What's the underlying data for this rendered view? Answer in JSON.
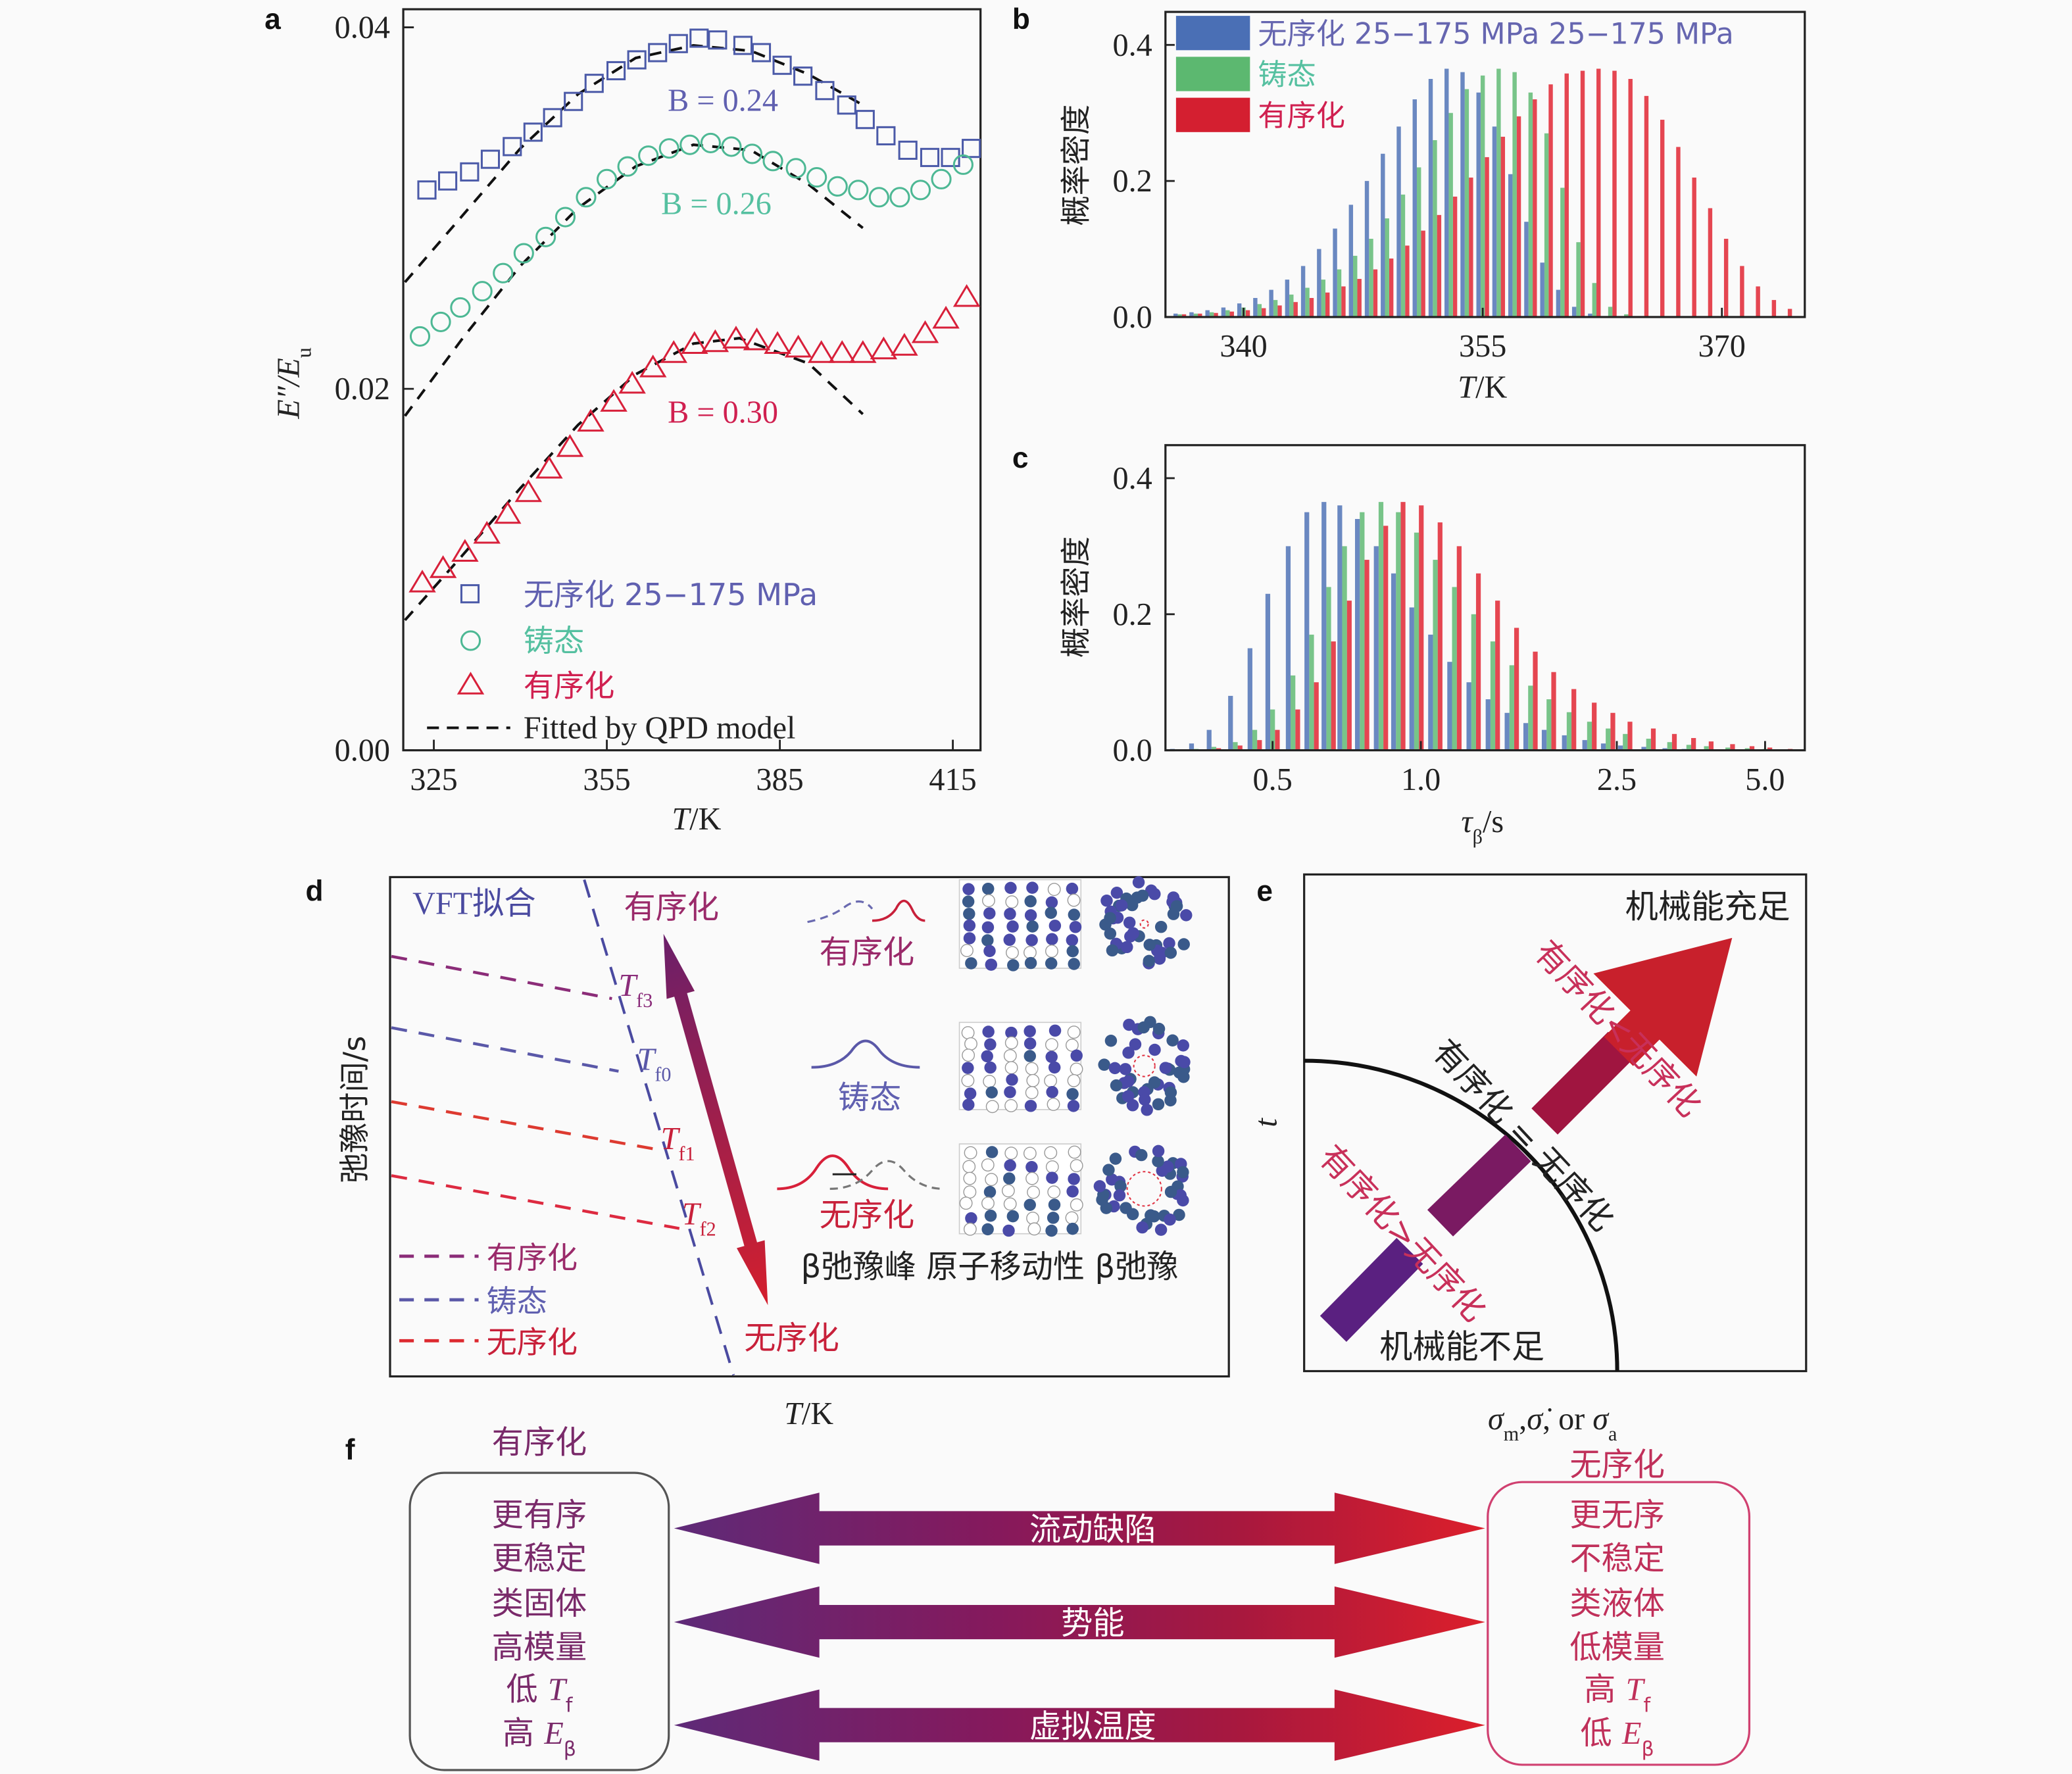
{
  "panel_labels": {
    "a": "a",
    "b": "b",
    "c": "c",
    "d": "d",
    "e": "e",
    "f": "f"
  },
  "colors": {
    "disordered_blue": "#4b5aa8",
    "as_cast_green": "#4db894",
    "ordered_red": "#d8203a",
    "hist_blue": "#4a6fb5",
    "hist_green": "#5cb870",
    "hist_red": "#e01e2c",
    "purple": "#7a2a6a",
    "magenta": "#c0305a"
  },
  "chart_data": [
    {
      "panel": "a",
      "type": "scatter",
      "xlabel": {
        "main": "T",
        "rest": "/K"
      },
      "ylabel": {
        "main": "E″/E",
        "sub": "u"
      },
      "xlim": [
        319.7,
        419.8
      ],
      "ylim": [
        0,
        0.041
      ],
      "xticks": [
        325,
        355,
        385,
        415
      ],
      "xtick_labels": [
        "325",
        "355",
        "385",
        "415"
      ],
      "yticks": [
        0,
        0.02,
        0.04
      ],
      "ytick_labels": [
        "0.00",
        "0.02",
        "0.04"
      ],
      "series": [
        {
          "name": "无序化 25−175 MPa",
          "marker": "square",
          "color": "#4b5aa8",
          "x": [
            323.8,
            327.4,
            331.2,
            334.8,
            338.6,
            342.2,
            345.6,
            349.2,
            352.8,
            356.6,
            360.2,
            363.8,
            367.4,
            371,
            374.2,
            378.6,
            381.8,
            385.4,
            389,
            392.8,
            396.6,
            399.8,
            403.4,
            407.2,
            411,
            414.6,
            418.2
          ],
          "y": [
            0.031,
            0.0315,
            0.032,
            0.0327,
            0.0334,
            0.0342,
            0.035,
            0.0359,
            0.0369,
            0.0376,
            0.0382,
            0.0386,
            0.0391,
            0.0394,
            0.0393,
            0.039,
            0.0386,
            0.0379,
            0.0373,
            0.0365,
            0.0357,
            0.0349,
            0.034,
            0.0332,
            0.0328,
            0.0328,
            0.0333
          ]
        },
        {
          "name": "铸态",
          "marker": "circle",
          "color": "#4db894",
          "x": [
            322.6,
            326.2,
            329.6,
            333.4,
            337,
            340.6,
            344.4,
            347.8,
            351.4,
            355,
            358.6,
            362.2,
            365.8,
            369.4,
            373,
            376.6,
            380.2,
            383.8,
            387.8,
            391.4,
            395,
            398.6,
            402.2,
            405.8,
            409.4,
            413,
            416.8
          ],
          "y": [
            0.0229,
            0.0237,
            0.0245,
            0.0254,
            0.0264,
            0.0275,
            0.0284,
            0.0295,
            0.0306,
            0.0316,
            0.0323,
            0.0329,
            0.0333,
            0.0335,
            0.0336,
            0.0334,
            0.033,
            0.0326,
            0.0322,
            0.0317,
            0.0312,
            0.031,
            0.0306,
            0.0306,
            0.031,
            0.0316,
            0.0324
          ]
        },
        {
          "name": "有序化",
          "marker": "triangle",
          "color": "#d8203a",
          "x": [
            323,
            326.6,
            330.4,
            334.2,
            337.8,
            341.4,
            345,
            348.6,
            352.2,
            356.2,
            359.4,
            363,
            366.6,
            370.2,
            373.8,
            377.4,
            381,
            384.6,
            388.2,
            392.2,
            395.8,
            399.4,
            403,
            406.6,
            410.2,
            413.8,
            417.4
          ],
          "y": [
            0.0093,
            0.0101,
            0.011,
            0.012,
            0.0131,
            0.0143,
            0.0156,
            0.0168,
            0.0182,
            0.0193,
            0.0203,
            0.0212,
            0.022,
            0.0225,
            0.0226,
            0.0228,
            0.0227,
            0.0225,
            0.0223,
            0.022,
            0.022,
            0.022,
            0.0222,
            0.0224,
            0.0231,
            0.0239,
            0.0251
          ]
        }
      ],
      "fits": [
        {
          "label": "B = 0.24",
          "color": "#6060b0",
          "x": [
            320,
            330,
            340,
            350,
            360,
            370,
            380,
            390,
            399.4
          ],
          "y": [
            0.0259,
            0.0296,
            0.0333,
            0.0363,
            0.0383,
            0.039,
            0.0387,
            0.0374,
            0.0357
          ]
        },
        {
          "label": "B = 0.26",
          "color": "#55c0a0",
          "x": [
            320,
            330,
            340,
            350,
            360,
            370,
            380,
            390,
            399.4
          ],
          "y": [
            0.0185,
            0.0228,
            0.0268,
            0.03,
            0.0323,
            0.0335,
            0.0332,
            0.0313,
            0.0289
          ]
        },
        {
          "label": "B = 0.30",
          "color": "#d02050",
          "x": [
            320,
            330,
            340,
            350,
            360,
            370,
            378,
            390,
            399.4
          ],
          "y": [
            0.0072,
            0.0108,
            0.0145,
            0.018,
            0.0208,
            0.0225,
            0.0228,
            0.0214,
            0.0186
          ]
        }
      ],
      "fit_legend": "Fitted by QPD model",
      "legend_position": "bottom-left"
    },
    {
      "panel": "b",
      "type": "bar",
      "xlabel": {
        "main": "T",
        "rest": "/K"
      },
      "ylabel": "概率密度",
      "xlim": [
        335.1,
        375.2
      ],
      "ylim": [
        0,
        0.45
      ],
      "xticks": [
        340,
        355,
        370
      ],
      "xtick_labels": [
        "340",
        "355",
        "370"
      ],
      "yticks": [
        0,
        0.2,
        0.4
      ],
      "ytick_labels": [
        "0.0",
        "0.2",
        "0.4"
      ],
      "x": [
        336,
        337,
        338,
        339,
        340,
        341,
        342,
        343,
        344,
        345,
        346,
        347,
        348,
        349,
        350,
        351,
        352,
        353,
        354,
        355,
        356,
        357,
        358,
        359,
        360,
        361,
        362,
        363,
        364,
        365,
        366,
        367,
        368,
        369,
        370,
        371,
        372,
        373,
        374,
        375
      ],
      "series": [
        {
          "name": "无序化 25−175 MPa 25−175 MPa",
          "color": "#4a6fb5",
          "text_color": "#6666b0",
          "values": [
            0.005,
            0.007,
            0.01,
            0.014,
            0.02,
            0.028,
            0.04,
            0.055,
            0.075,
            0.1,
            0.13,
            0.165,
            0.2,
            0.24,
            0.28,
            0.32,
            0.35,
            0.365,
            0.36,
            0.33,
            0.28,
            0.21,
            0.14,
            0.08,
            0.04,
            0.015,
            0.005,
            0.001,
            0,
            0,
            0,
            0,
            0,
            0,
            0,
            0,
            0,
            0,
            0,
            0
          ]
        },
        {
          "name": "铸态",
          "color": "#5cb870",
          "text_color": "#55c0a0",
          "values": [
            0.004,
            0.005,
            0.007,
            0.01,
            0.014,
            0.019,
            0.025,
            0.033,
            0.043,
            0.055,
            0.07,
            0.09,
            0.115,
            0.145,
            0.18,
            0.22,
            0.26,
            0.3,
            0.335,
            0.355,
            0.365,
            0.36,
            0.33,
            0.27,
            0.19,
            0.11,
            0.05,
            0.015,
            0.004,
            0.001,
            0,
            0,
            0,
            0,
            0,
            0,
            0,
            0,
            0,
            0
          ]
        },
        {
          "name": "有序化",
          "color": "#e01e2c",
          "text_color": "#d02050",
          "values": [
            0.004,
            0.005,
            0.006,
            0.008,
            0.01,
            0.013,
            0.017,
            0.022,
            0.028,
            0.036,
            0.045,
            0.056,
            0.07,
            0.086,
            0.105,
            0.127,
            0.15,
            0.177,
            0.205,
            0.235,
            0.265,
            0.295,
            0.32,
            0.342,
            0.358,
            0.362,
            0.365,
            0.362,
            0.35,
            0.325,
            0.29,
            0.25,
            0.205,
            0.16,
            0.115,
            0.075,
            0.045,
            0.025,
            0.012,
            0.005
          ]
        }
      ],
      "legend_position": "top-left"
    },
    {
      "panel": "c",
      "type": "bar",
      "xlabel": {
        "main": "τ",
        "sub": "β",
        "rest": "/s"
      },
      "ylabel": "概率密度",
      "xscale": "log",
      "xlim": [
        0.303,
        6.02
      ],
      "ylim": [
        0,
        0.45
      ],
      "xticks": [
        0.5,
        1.0,
        2.5,
        5.0
      ],
      "xtick_labels": [
        "0.5",
        "1.0",
        "2.5",
        "5.0"
      ],
      "yticks": [
        0,
        0.2,
        0.4
      ],
      "ytick_labels": [
        "0.0",
        "0.2",
        "0.4"
      ],
      "x": [
        0.32,
        0.35,
        0.38,
        0.42,
        0.46,
        0.5,
        0.55,
        0.6,
        0.65,
        0.7,
        0.76,
        0.83,
        0.9,
        0.98,
        1.07,
        1.17,
        1.28,
        1.4,
        1.53,
        1.67,
        1.82,
        2.0,
        2.2,
        2.4,
        2.6,
        2.9,
        3.2,
        3.5,
        3.8,
        4.2,
        4.6,
        5.0,
        5.5,
        6.0
      ],
      "series": [
        {
          "name": "无序化 25−175 MPa",
          "color": "#4a6fb5",
          "values": [
            0.002,
            0.01,
            0.03,
            0.08,
            0.15,
            0.23,
            0.3,
            0.35,
            0.365,
            0.36,
            0.34,
            0.3,
            0.26,
            0.21,
            0.17,
            0.13,
            0.1,
            0.075,
            0.055,
            0.04,
            0.03,
            0.022,
            0.015,
            0.01,
            0.007,
            0.005,
            0.003,
            0.002,
            0.001,
            0.001,
            0,
            0,
            0,
            0
          ]
        },
        {
          "name": "铸态",
          "color": "#5cb870",
          "values": [
            0,
            0.002,
            0.005,
            0.012,
            0.03,
            0.06,
            0.11,
            0.17,
            0.24,
            0.3,
            0.35,
            0.365,
            0.35,
            0.32,
            0.28,
            0.24,
            0.2,
            0.16,
            0.125,
            0.095,
            0.075,
            0.056,
            0.042,
            0.032,
            0.024,
            0.017,
            0.012,
            0.008,
            0.006,
            0.004,
            0.003,
            0.002,
            0.001,
            0
          ]
        },
        {
          "name": "有序化",
          "color": "#e01e2c",
          "values": [
            0,
            0.001,
            0.003,
            0.007,
            0.015,
            0.03,
            0.06,
            0.1,
            0.16,
            0.22,
            0.28,
            0.33,
            0.365,
            0.36,
            0.335,
            0.3,
            0.26,
            0.22,
            0.18,
            0.145,
            0.115,
            0.09,
            0.07,
            0.055,
            0.042,
            0.032,
            0.024,
            0.018,
            0.013,
            0.009,
            0.006,
            0.004,
            0.002,
            0.001
          ]
        }
      ]
    }
  ],
  "panel_d": {
    "vft_fit": "VFT拟合",
    "top_label": "有序化",
    "bottom_label": "无序化",
    "tf_labels": [
      {
        "main": "T",
        "sub": "f3"
      },
      {
        "main": "T",
        "sub": "f0"
      },
      {
        "main": "T",
        "sub": "f1"
      },
      {
        "main": "T",
        "sub": "f2"
      }
    ],
    "legend": [
      "有序化",
      "铸态",
      "无序化"
    ],
    "row_labels": [
      "有序化",
      "铸态",
      "无序化"
    ],
    "column_labels": "β弛豫峰 原子移动性 β弛豫",
    "ylabel": "弛豫时间/s",
    "xlabel": {
      "main": "T",
      "rest": "/K"
    }
  },
  "panel_e": {
    "top_right": "机械能充足",
    "bottom": "机械能不足",
    "diag_upper": "有序化<无序化",
    "diag_middle": "有序化 = 无序化",
    "diag_lower": "有序化>无序化",
    "ylabel": "t",
    "xlabel": {
      "s1": "σ",
      "s1sub": "m",
      "sep1": ",",
      "s2": "σ̇",
      "sep2": ", or ",
      "s3": "σ",
      "s3sub": "a"
    }
  },
  "panel_f": {
    "left_title": "有序化",
    "right_title": "无序化",
    "left_items": [
      "更有序",
      "更稳定",
      "类固体",
      "高模量",
      {
        "pre": "低 ",
        "main": "T",
        "sub": "f"
      },
      {
        "pre": "高 ",
        "main": "E",
        "sub": "β"
      }
    ],
    "right_items": [
      "更无序",
      "不稳定",
      "类液体",
      "低模量",
      {
        "pre": "高 ",
        "main": "T",
        "sub": "f"
      },
      {
        "pre": "低 ",
        "main": "E",
        "sub": "β"
      }
    ],
    "arrows": [
      "流动缺陷",
      "势能",
      "虚拟温度"
    ]
  }
}
